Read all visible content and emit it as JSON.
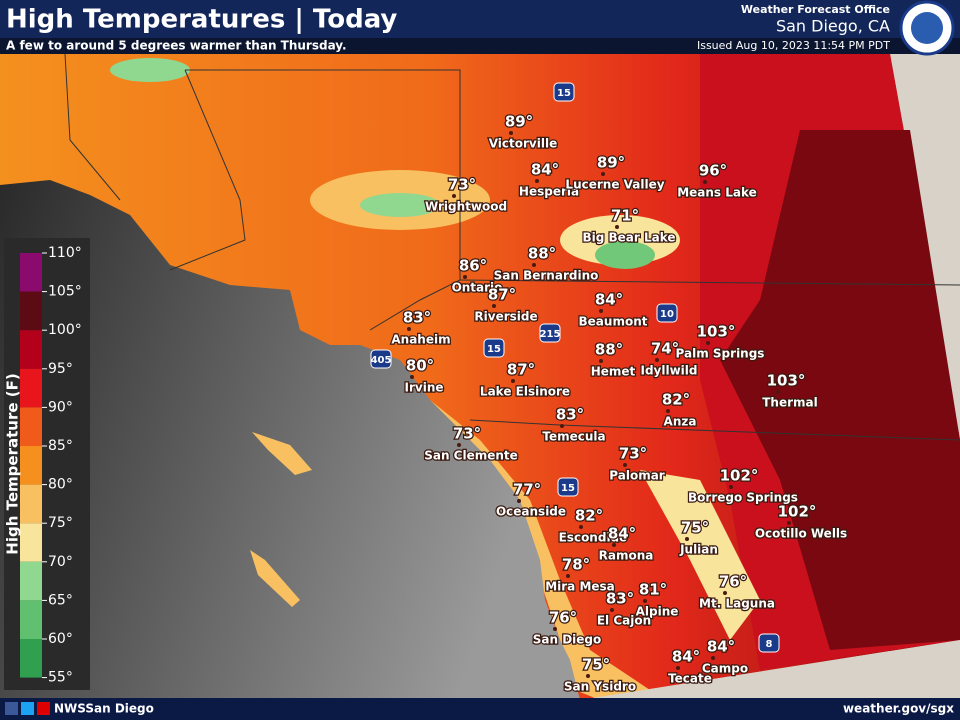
{
  "header": {
    "title": "High Temperatures | Today",
    "subtitle": "A few to around 5 degrees warmer than Thursday.",
    "office": "Weather Forecast Office",
    "location": "San Diego, CA",
    "issued": "Issued Aug 10, 2023 11:54 PM PDT"
  },
  "legend": {
    "title": "High Temperature (F)",
    "ticks": [
      "110°",
      "105°",
      "100°",
      "95°",
      "90°",
      "85°",
      "80°",
      "75°",
      "70°",
      "65°",
      "60°",
      "55°"
    ]
  },
  "cities": [
    {
      "name": "Victorville",
      "temp": "89°"
    },
    {
      "name": "Hesperia",
      "temp": "84°"
    },
    {
      "name": "Lucerne Valley",
      "temp": "89°"
    },
    {
      "name": "Means Lake",
      "temp": "96°"
    },
    {
      "name": "Wrightwood",
      "temp": "73°"
    },
    {
      "name": "Big Bear Lake",
      "temp": "71°"
    },
    {
      "name": "Ontario",
      "temp": "86°"
    },
    {
      "name": "San Bernardino",
      "temp": "88°"
    },
    {
      "name": "Riverside",
      "temp": "87°"
    },
    {
      "name": "Beaumont",
      "temp": "84°"
    },
    {
      "name": "Palm Springs",
      "temp": "103°"
    },
    {
      "name": "Anaheim",
      "temp": "83°"
    },
    {
      "name": "Irvine",
      "temp": "80°"
    },
    {
      "name": "Lake Elsinore",
      "temp": "87°"
    },
    {
      "name": "Hemet",
      "temp": "88°"
    },
    {
      "name": "Idyllwild",
      "temp": "74°"
    },
    {
      "name": "Thermal",
      "temp": "103°"
    },
    {
      "name": "Anza",
      "temp": "82°"
    },
    {
      "name": "Temecula",
      "temp": "83°"
    },
    {
      "name": "San Clemente",
      "temp": "73°"
    },
    {
      "name": "Palomar",
      "temp": "73°"
    },
    {
      "name": "Borrego Springs",
      "temp": "102°"
    },
    {
      "name": "Oceanside",
      "temp": "77°"
    },
    {
      "name": "Escondido",
      "temp": "82°"
    },
    {
      "name": "Ocotillo Wells",
      "temp": "102°"
    },
    {
      "name": "Ramona",
      "temp": "84°"
    },
    {
      "name": "Julian",
      "temp": "75°"
    },
    {
      "name": "Mira Mesa",
      "temp": "78°"
    },
    {
      "name": "Mt. Laguna",
      "temp": "76°"
    },
    {
      "name": "Alpine",
      "temp": "81°"
    },
    {
      "name": "El Cajon",
      "temp": "83°"
    },
    {
      "name": "San Diego",
      "temp": "76°"
    },
    {
      "name": "Campo",
      "temp": "84°"
    },
    {
      "name": "Tecate",
      "temp": "84°"
    },
    {
      "name": "San Ysidro",
      "temp": "75°"
    }
  ],
  "highways": [
    "15",
    "10",
    "215",
    "405",
    "15",
    "15",
    "8"
  ],
  "footer": {
    "social": "NWSSan Diego",
    "website": "weather.gov/sgx"
  }
}
